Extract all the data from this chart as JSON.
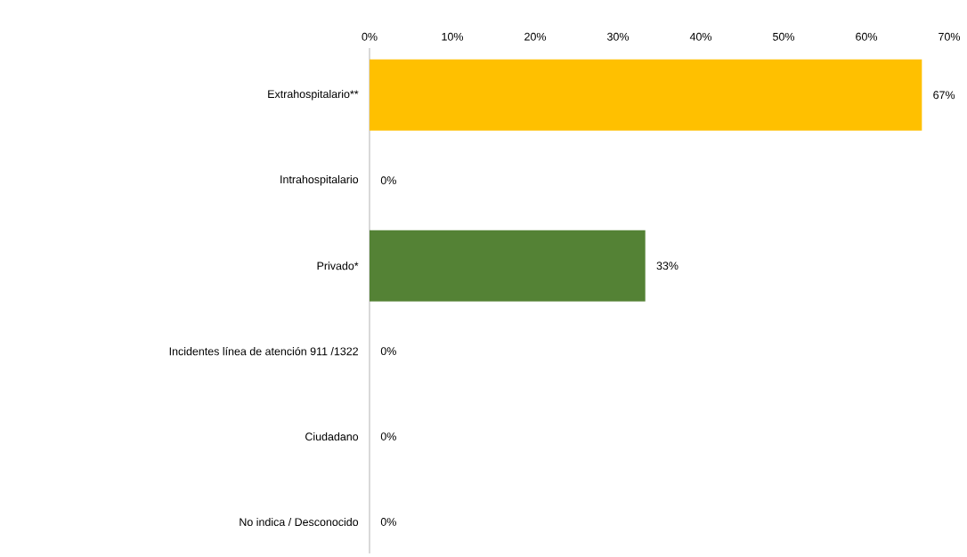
{
  "chart_data": {
    "type": "bar",
    "orientation": "horizontal",
    "categories": [
      "Extrahospitalario**",
      "Intrahospitalario",
      "Privado*",
      "Incidentes línea de atención 911 /1322",
      "Ciudadano",
      "No indica / Desconocido"
    ],
    "values": [
      66.7,
      0,
      33.3,
      0,
      0,
      0
    ],
    "colors": [
      "#ffc000",
      "#ffc000",
      "#548235",
      "#548235",
      "#548235",
      "#548235"
    ],
    "value_labels": [
      "67%",
      "0%",
      "33%",
      "0%",
      "0%",
      "0%"
    ],
    "xlim": [
      0,
      70
    ],
    "xticks": [
      {
        "value": 0,
        "label": "0%"
      },
      {
        "value": 10,
        "label": "10%"
      },
      {
        "value": 20,
        "label": "20%"
      },
      {
        "value": 30,
        "label": "30%"
      },
      {
        "value": 40,
        "label": "40%"
      },
      {
        "value": 50,
        "label": "50%"
      },
      {
        "value": 60,
        "label": "60%"
      },
      {
        "value": 70,
        "label": "70%"
      }
    ]
  }
}
